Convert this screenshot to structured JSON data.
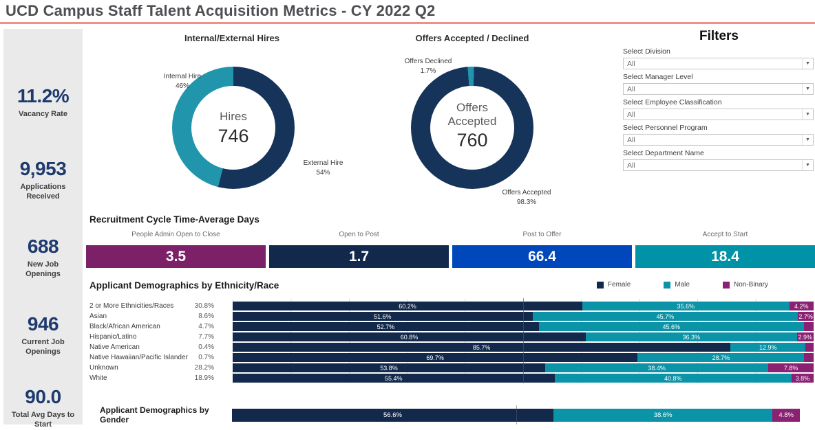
{
  "title": "UCD Campus Staff Talent Acquisition Metrics - CY 2022 Q2",
  "colors": {
    "navy": "#13294b",
    "teal": "#0b93a7",
    "donut_navy": "#16345a",
    "donut_teal": "#2095ac",
    "purple": "#8a2173",
    "cycle_purple": "#7c2168",
    "cycle_blue": "#0047bb",
    "kpi_navy": "#1e3a6e",
    "header_underline": "#f0908a",
    "sidebar_bg": "#eaeaea"
  },
  "kpis": [
    {
      "value": "11.2%",
      "label": "Vacancy Rate"
    },
    {
      "value": "9,953",
      "label": "Applications Received"
    },
    {
      "value": "688",
      "label": "New Job Openings"
    },
    {
      "value": "946",
      "label": "Current Job Openings"
    },
    {
      "value": "90.0",
      "label": "Total Avg Days to Start"
    }
  ],
  "filters": {
    "heading": "Filters",
    "items": [
      {
        "label": "Select Division",
        "value": "All"
      },
      {
        "label": "Select Manager Level",
        "value": "All"
      },
      {
        "label": "Select Employee Classification",
        "value": "All"
      },
      {
        "label": "Select Personnel Program",
        "value": "All"
      },
      {
        "label": "Select Department Name",
        "value": "All"
      }
    ]
  },
  "chart_data": [
    {
      "type": "pie",
      "subtype": "donut",
      "title": "Internal/External Hires",
      "center_label": "Hires",
      "center_value": "746",
      "start_offset_pct": 0,
      "slices": [
        {
          "label": "External Hire",
          "pct": 54,
          "pct_label": "54%",
          "color": "#16345a"
        },
        {
          "label": "Internal Hire",
          "pct": 46,
          "pct_label": "46%",
          "color": "#2095ac"
        }
      ]
    },
    {
      "type": "pie",
      "subtype": "donut",
      "title": "Offers Accepted / Declined",
      "center_label": "Offers Accepted",
      "center_value": "760",
      "start_offset_pct": -1.2,
      "slices": [
        {
          "label": "Offers Declined",
          "pct": 1.7,
          "pct_label": "1.7%",
          "color": "#2095ac"
        },
        {
          "label": "Offers Accepted",
          "pct": 98.3,
          "pct_label": "98.3%",
          "color": "#16345a"
        }
      ]
    },
    {
      "type": "bar",
      "subtype": "kpi-strip",
      "title": "Recruitment Cycle Time-Average Days",
      "categories": [
        "People Admin Open to Close",
        "Open to Post",
        "Post to Offer",
        "Accept to Start"
      ],
      "values": [
        3.5,
        1.7,
        66.4,
        18.4
      ],
      "display_values": [
        "3.5",
        "1.7",
        "66.4",
        "18.4"
      ],
      "colors": [
        "#7c2168",
        "#13294b",
        "#0047bb",
        "#0093a7"
      ]
    },
    {
      "type": "bar",
      "subtype": "stacked-horizontal",
      "title": "Applicant Demographics by Ethnicity/Race",
      "xlim": [
        0,
        100
      ],
      "legend": [
        {
          "name": "Female",
          "color": "#13294b"
        },
        {
          "name": "Male",
          "color": "#0b93a7"
        },
        {
          "name": "Non-Binary",
          "color": "#8a2173"
        }
      ],
      "categories": [
        "2 or More Ethnicities/Races",
        "Asian",
        "Black/African American",
        "Hispanic/Latino",
        "Native American",
        "Native Hawaiian/Pacific Islander",
        "Unknown",
        "White"
      ],
      "category_totals": [
        "30.8%",
        "8.6%",
        "4.7%",
        "7.7%",
        "0.4%",
        "0.7%",
        "28.2%",
        "18.9%"
      ],
      "series": [
        {
          "name": "Female",
          "values": [
            60.2,
            51.6,
            52.7,
            60.8,
            85.7,
            69.7,
            53.8,
            55.4
          ]
        },
        {
          "name": "Male",
          "values": [
            35.6,
            45.7,
            45.6,
            36.3,
            12.9,
            28.7,
            38.4,
            40.8
          ]
        },
        {
          "name": "Non-Binary",
          "values": [
            4.2,
            2.7,
            1.7,
            2.9,
            1.4,
            1.6,
            7.8,
            3.8
          ]
        }
      ],
      "segment_labels": [
        [
          "60.2%",
          "35.6%",
          "4.2%"
        ],
        [
          "51.6%",
          "45.7%",
          "2.7%"
        ],
        [
          "52.7%",
          "45.6%",
          ""
        ],
        [
          "60.8%",
          "36.3%",
          "2.9%"
        ],
        [
          "85.7%",
          "12.9%",
          ""
        ],
        [
          "69.7%",
          "28.7%",
          ""
        ],
        [
          "53.8%",
          "38.4%",
          "7.8%"
        ],
        [
          "55.4%",
          "40.8%",
          "3.8%"
        ]
      ]
    },
    {
      "type": "bar",
      "subtype": "stacked-horizontal",
      "title": "Applicant Demographics by Gender",
      "xlim": [
        0,
        100
      ],
      "series": [
        {
          "name": "Female",
          "value": 56.6,
          "label": "56.6%",
          "color": "#13294b"
        },
        {
          "name": "Male",
          "value": 38.6,
          "label": "38.6%",
          "color": "#0b93a7"
        },
        {
          "name": "Non-Binary",
          "value": 4.8,
          "label": "4.8%",
          "color": "#8a2173"
        }
      ]
    }
  ]
}
